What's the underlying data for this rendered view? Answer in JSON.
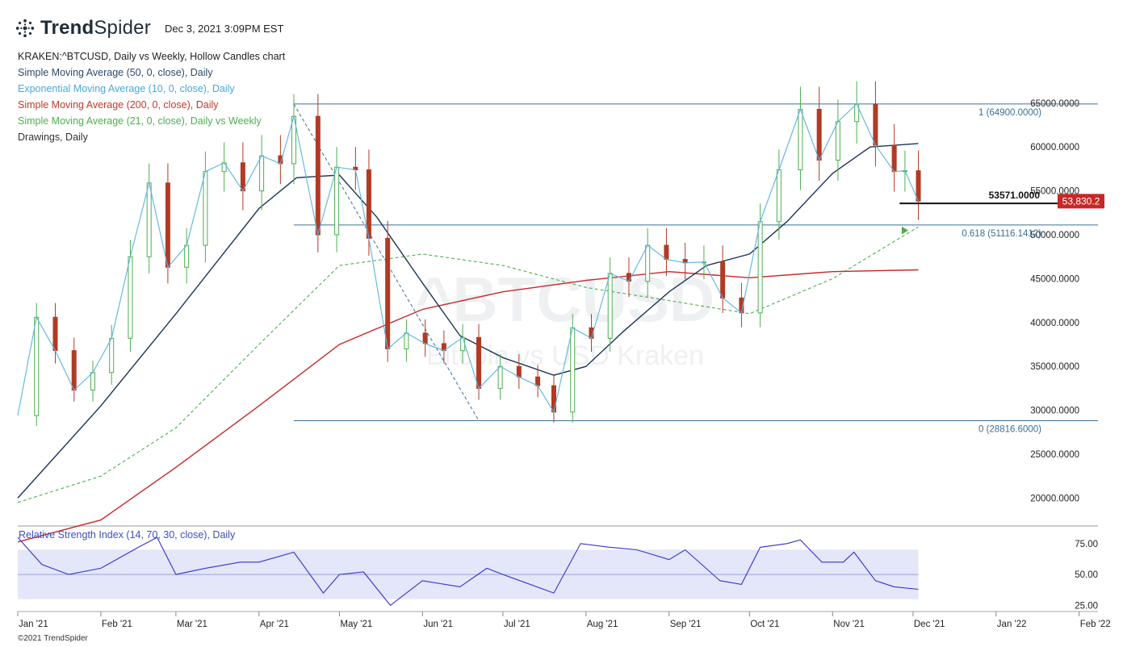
{
  "header": {
    "brand_bold": "Trend",
    "brand_light": "Spider",
    "timestamp": "Dec 3, 2021 3:09PM EST"
  },
  "legend": [
    {
      "label": "KRAKEN:^BTCUSD, Daily vs Weekly, Hollow Candles chart",
      "color": "#222222"
    },
    {
      "label": "Simple Moving Average (50, 0, close), Daily",
      "color": "#2c4a6b"
    },
    {
      "label": "Exponential Moving Average (10, 0, close), Daily",
      "color": "#4aa8d8"
    },
    {
      "label": "Simple Moving Average (200, 0, close), Daily",
      "color": "#c0392b"
    },
    {
      "label": "Simple Moving Average (21, 0, close), Daily vs Weekly",
      "color": "#4caf50"
    },
    {
      "label": "Drawings, Daily",
      "color": "#333333"
    }
  ],
  "watermark": {
    "line1": "^BTCUSD",
    "line2": "Bitcoin vs USD Kraken"
  },
  "copyright": "©2021 TrendSpider",
  "colors": {
    "up": "#4caf50",
    "down": "#b23a24",
    "sma50": "#1c3557",
    "ema10": "#5ab4e0",
    "sma200": "#c62828",
    "sma21": "#4caf50",
    "fib": "#3a6f95",
    "rsi": "#3333cc",
    "rsi_band": "#dde0f7",
    "price_tag": "#c62828"
  },
  "chart_data": {
    "type": "line",
    "title": "KRAKEN:^BTCUSD, Daily vs Weekly, Hollow Candles chart",
    "x_ticks": [
      "Jan '21",
      "Feb '21",
      "Mar '21",
      "Apr '21",
      "May '21",
      "Jun '21",
      "Jul '21",
      "Aug '21",
      "Sep '21",
      "Oct '21",
      "Nov '21",
      "Dec '21",
      "Jan '22",
      "Feb '22"
    ],
    "y_ticks": [
      "65000.0000",
      "60000.0000",
      "55000.0000",
      "50000.0000",
      "45000.0000",
      "40000.0000",
      "35000.0000",
      "30000.0000",
      "25000.0000",
      "20000.0000"
    ],
    "y_tick_values": [
      65000,
      60000,
      55000,
      50000,
      45000,
      40000,
      35000,
      30000,
      25000,
      20000
    ],
    "ylim": [
      17000,
      70500
    ],
    "last_price_label": "53,830.2",
    "last_price": 53830.2,
    "support_label": "53571.0000",
    "support_value": 53571,
    "fib_levels": [
      {
        "label": "1 (64900.0000)",
        "value": 64900
      },
      {
        "label": "0.618 (51116.1412)",
        "value": 51116.1412
      },
      {
        "label": "0 (28816.6000)",
        "value": 28816.6
      }
    ],
    "series": [
      {
        "name": "Close",
        "x": [
          "2021-01-01",
          "2021-01-08",
          "2021-01-15",
          "2021-01-22",
          "2021-01-29",
          "2021-02-05",
          "2021-02-12",
          "2021-02-19",
          "2021-02-26",
          "2021-03-05",
          "2021-03-12",
          "2021-03-19",
          "2021-03-26",
          "2021-04-02",
          "2021-04-09",
          "2021-04-14",
          "2021-04-23",
          "2021-04-30",
          "2021-05-07",
          "2021-05-12",
          "2021-05-19",
          "2021-05-26",
          "2021-06-02",
          "2021-06-09",
          "2021-06-16",
          "2021-06-22",
          "2021-06-30",
          "2021-07-07",
          "2021-07-14",
          "2021-07-20",
          "2021-07-27",
          "2021-08-03",
          "2021-08-10",
          "2021-08-17",
          "2021-08-24",
          "2021-08-31",
          "2021-09-07",
          "2021-09-14",
          "2021-09-21",
          "2021-09-28",
          "2021-10-05",
          "2021-10-12",
          "2021-10-20",
          "2021-10-27",
          "2021-11-03",
          "2021-11-10",
          "2021-11-17",
          "2021-11-24",
          "2021-11-28",
          "2021-12-03"
        ],
        "y": [
          29400,
          40600,
          36800,
          32300,
          34300,
          38200,
          47500,
          55900,
          46300,
          48800,
          57200,
          58200,
          55000,
          59000,
          58100,
          63500,
          50000,
          57700,
          57400,
          49600,
          37000,
          38800,
          37600,
          36800,
          38300,
          32500,
          35000,
          33800,
          32800,
          29800,
          39400,
          38200,
          45600,
          44700,
          48800,
          47200,
          46800,
          46900,
          42800,
          41100,
          51500,
          57400,
          64300,
          58500,
          62900,
          64900,
          60200,
          57200,
          57300,
          53830
        ]
      },
      {
        "name": "Simple Moving Average (50, 0, close), Daily",
        "x": [
          "2021-01-01",
          "2021-02-01",
          "2021-03-01",
          "2021-04-01",
          "2021-04-15",
          "2021-05-01",
          "2021-05-15",
          "2021-06-01",
          "2021-06-15",
          "2021-07-01",
          "2021-07-20",
          "2021-08-01",
          "2021-08-15",
          "2021-09-01",
          "2021-09-15",
          "2021-10-01",
          "2021-10-15",
          "2021-11-01",
          "2021-11-15",
          "2021-12-03"
        ],
        "y": [
          20000,
          30500,
          41000,
          53000,
          56500,
          56800,
          52000,
          44500,
          38500,
          36000,
          34000,
          35000,
          39000,
          43500,
          46500,
          47800,
          51500,
          57000,
          60000,
          60400
        ]
      },
      {
        "name": "Simple Moving Average (200, 0, close), Daily",
        "x": [
          "2021-01-01",
          "2021-02-01",
          "2021-03-01",
          "2021-04-01",
          "2021-05-01",
          "2021-06-01",
          "2021-07-01",
          "2021-08-01",
          "2021-09-01",
          "2021-10-01",
          "2021-11-01",
          "2021-12-03"
        ],
        "y": [
          15000,
          17500,
          23500,
          30500,
          37500,
          41500,
          43500,
          44800,
          45800,
          45100,
          45800,
          46000
        ]
      },
      {
        "name": "Simple Moving Average (21, 0, close), Daily vs Weekly",
        "x": [
          "2021-01-01",
          "2021-02-01",
          "2021-03-01",
          "2021-04-01",
          "2021-05-01",
          "2021-06-01",
          "2021-07-01",
          "2021-08-01",
          "2021-09-01",
          "2021-10-01",
          "2021-11-01",
          "2021-12-03"
        ],
        "y": [
          19500,
          22500,
          28000,
          37500,
          46500,
          47800,
          46500,
          44000,
          42500,
          41000,
          45000,
          50900
        ]
      }
    ],
    "rsi": {
      "title": "Relative Strength Index (14, 70, 30, close), Daily",
      "y_ticks": [
        "75.00",
        "50.00",
        "25.00"
      ],
      "y_tick_values": [
        75,
        50,
        25
      ],
      "band": [
        30,
        70
      ],
      "ylim": [
        22,
        84
      ],
      "x": [
        "2021-01-01",
        "2021-01-10",
        "2021-01-20",
        "2021-02-01",
        "2021-02-15",
        "2021-02-22",
        "2021-03-01",
        "2021-03-12",
        "2021-03-25",
        "2021-04-01",
        "2021-04-14",
        "2021-04-25",
        "2021-05-01",
        "2021-05-10",
        "2021-05-20",
        "2021-06-01",
        "2021-06-15",
        "2021-06-25",
        "2021-07-01",
        "2021-07-20",
        "2021-07-30",
        "2021-08-10",
        "2021-08-20",
        "2021-09-01",
        "2021-09-07",
        "2021-09-20",
        "2021-09-28",
        "2021-10-05",
        "2021-10-15",
        "2021-10-20",
        "2021-10-28",
        "2021-11-05",
        "2021-11-09",
        "2021-11-17",
        "2021-11-24",
        "2021-12-03"
      ],
      "y": [
        80,
        58,
        50,
        55,
        72,
        80,
        50,
        55,
        60,
        60,
        68,
        35,
        50,
        52,
        25,
        45,
        40,
        55,
        50,
        35,
        75,
        72,
        70,
        62,
        70,
        45,
        42,
        72,
        75,
        78,
        60,
        60,
        68,
        45,
        40,
        38
      ]
    }
  }
}
